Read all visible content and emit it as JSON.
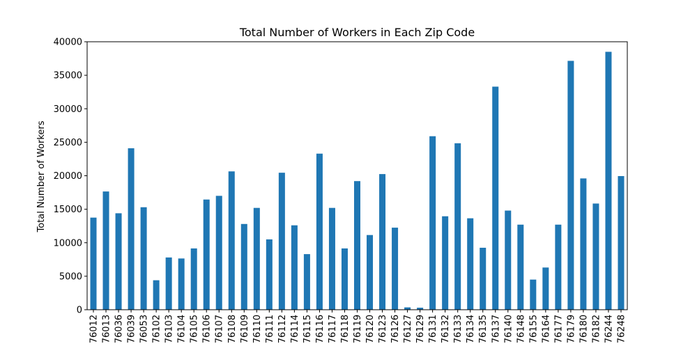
{
  "chart_data": {
    "type": "bar",
    "title": "Total Number of Workers in Each Zip Code",
    "xlabel": "",
    "ylabel": "Total Number of Workers",
    "ylim": [
      0,
      40000
    ],
    "yticks": [
      0,
      5000,
      10000,
      15000,
      20000,
      25000,
      30000,
      35000,
      40000
    ],
    "grid": false,
    "legend": "none",
    "bar_color": "#1f77b4",
    "categories": [
      "76012",
      "76013",
      "76036",
      "76039",
      "76053",
      "76102",
      "76103",
      "76104",
      "76105",
      "76106",
      "76107",
      "76108",
      "76109",
      "76110",
      "76111",
      "76112",
      "76114",
      "76115",
      "76116",
      "76117",
      "76118",
      "76119",
      "76120",
      "76123",
      "76126",
      "76127",
      "76129",
      "76131",
      "76132",
      "76133",
      "76134",
      "76135",
      "76137",
      "76140",
      "76148",
      "76155",
      "76164",
      "76177",
      "76179",
      "76180",
      "76182",
      "76244",
      "76248"
    ],
    "values": [
      13750,
      17650,
      14400,
      24100,
      15300,
      4400,
      7800,
      7650,
      9150,
      16450,
      17000,
      20650,
      12800,
      15200,
      10500,
      20450,
      12600,
      8300,
      23300,
      15200,
      9150,
      19200,
      11150,
      20250,
      12250,
      350,
      300,
      25900,
      13950,
      24850,
      13650,
      9250,
      33300,
      14800,
      12700,
      4500,
      6300,
      12700,
      37150,
      19600,
      15850,
      38500,
      19950
    ]
  }
}
